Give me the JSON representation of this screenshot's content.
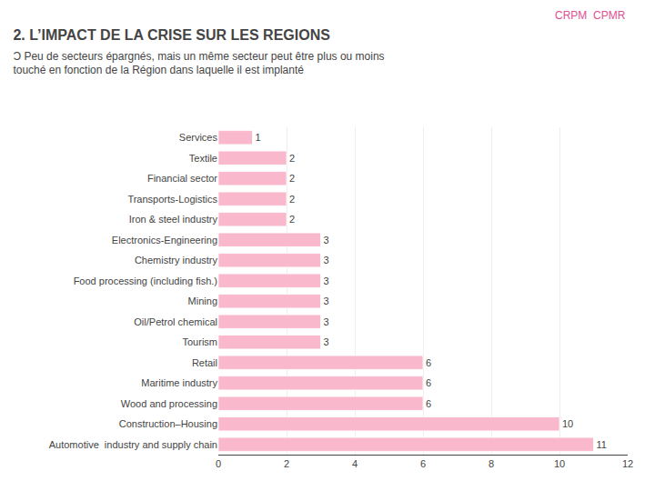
{
  "chart_data": {
    "type": "bar",
    "orientation": "horizontal",
    "title": "2. L’IMPACT DE LA CRISE SUR LES REGIONS",
    "subtitle": [
      "Ɔ Peu de secteurs épargnés, mais un même secteur peut être plus ou moins",
      "touché en fonction de la Région dans laquelle il est implanté"
    ],
    "annotations": [
      "CRPM  CPMR"
    ],
    "categories": [
      "Automotive  industry and supply chain",
      "Construction–Housing",
      "Wood and processing",
      "Maritime industry",
      "Retail",
      "Tourism",
      "Oil/Petrol chemical",
      "Mining",
      "Food processing (including fish.)",
      "Chemistry industry",
      "Electronics-Engineering",
      "Iron & steel industry",
      "Transports-Logistics",
      "Financial sector",
      "Textile",
      "Services"
    ],
    "values": [
      11,
      10,
      6,
      6,
      6,
      3,
      3,
      3,
      3,
      3,
      3,
      2,
      2,
      2,
      2,
      1
    ],
    "color": "#F9B8CC",
    "xlim": [
      0,
      12
    ],
    "xticks": [
      0,
      2,
      4,
      6,
      8,
      10,
      12
    ],
    "grid": true,
    "data_labels": true
  }
}
